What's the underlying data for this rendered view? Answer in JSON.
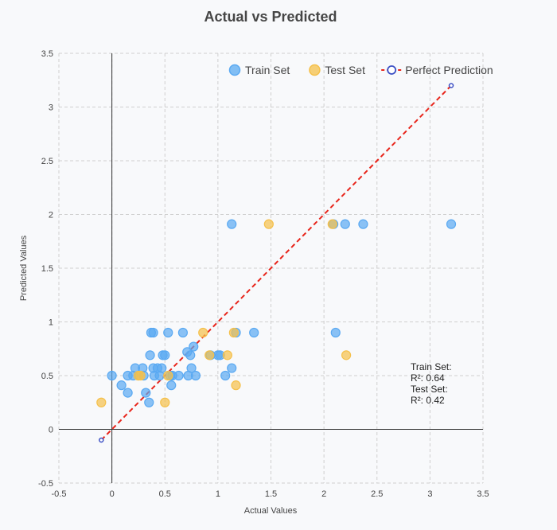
{
  "chart_data": {
    "type": "scatter",
    "title": "Actual vs Predicted",
    "xlabel": "Actual Values",
    "ylabel": "Predicted Values",
    "xlim": [
      -0.5,
      3.5
    ],
    "ylim": [
      -0.5,
      3.5
    ],
    "xticks": [
      "-0.5",
      "0",
      "0.5",
      "1",
      "1.5",
      "2",
      "2.5",
      "3",
      "3.5"
    ],
    "yticks": [
      "-0.5",
      "0",
      "0.5",
      "1",
      "1.5",
      "2",
      "2.5",
      "3",
      "3.5"
    ],
    "grid": true,
    "legend_position": "top-right",
    "series": [
      {
        "name": "Train Set",
        "color": "#5aa9f2",
        "points": [
          [
            0.0,
            0.5
          ],
          [
            0.09,
            0.41
          ],
          [
            0.15,
            0.34
          ],
          [
            0.15,
            0.5
          ],
          [
            0.2,
            0.5
          ],
          [
            0.22,
            0.57
          ],
          [
            0.25,
            0.5
          ],
          [
            0.29,
            0.57
          ],
          [
            0.3,
            0.5
          ],
          [
            0.32,
            0.34
          ],
          [
            0.35,
            0.25
          ],
          [
            0.36,
            0.69
          ],
          [
            0.37,
            0.9
          ],
          [
            0.39,
            0.9
          ],
          [
            0.39,
            0.57
          ],
          [
            0.4,
            0.5
          ],
          [
            0.43,
            0.57
          ],
          [
            0.45,
            0.5
          ],
          [
            0.47,
            0.57
          ],
          [
            0.48,
            0.69
          ],
          [
            0.5,
            0.69
          ],
          [
            0.53,
            0.9
          ],
          [
            0.55,
            0.5
          ],
          [
            0.56,
            0.41
          ],
          [
            0.57,
            0.5
          ],
          [
            0.63,
            0.5
          ],
          [
            0.67,
            0.9
          ],
          [
            0.71,
            0.72
          ],
          [
            0.72,
            0.5
          ],
          [
            0.74,
            0.69
          ],
          [
            0.75,
            0.57
          ],
          [
            0.77,
            0.77
          ],
          [
            0.79,
            0.5
          ],
          [
            0.93,
            0.69
          ],
          [
            1.0,
            0.69
          ],
          [
            1.02,
            0.69
          ],
          [
            1.07,
            0.5
          ],
          [
            1.13,
            0.57
          ],
          [
            1.13,
            1.91
          ],
          [
            1.17,
            0.9
          ],
          [
            1.34,
            0.9
          ],
          [
            2.09,
            1.91
          ],
          [
            2.11,
            0.9
          ],
          [
            2.2,
            1.91
          ],
          [
            2.37,
            1.91
          ],
          [
            3.2,
            1.91
          ]
        ]
      },
      {
        "name": "Test Set",
        "color": "#f5c04a",
        "points": [
          [
            -0.1,
            0.25
          ],
          [
            0.25,
            0.5
          ],
          [
            0.27,
            0.5
          ],
          [
            0.5,
            0.25
          ],
          [
            0.53,
            0.5
          ],
          [
            0.86,
            0.9
          ],
          [
            0.92,
            0.69
          ],
          [
            1.09,
            0.69
          ],
          [
            1.15,
            0.9
          ],
          [
            1.17,
            0.41
          ],
          [
            1.48,
            1.91
          ],
          [
            2.08,
            1.91
          ],
          [
            2.21,
            0.69
          ]
        ]
      }
    ],
    "reference_line": {
      "name": "Perfect Prediction",
      "color": "#e8251b",
      "from": [
        -0.1,
        -0.1
      ],
      "to": [
        3.2,
        3.2
      ]
    },
    "annotation": {
      "lines": [
        "Train Set:",
        "R²: 0.64",
        "Test Set:",
        "R²: 0.42"
      ]
    }
  }
}
